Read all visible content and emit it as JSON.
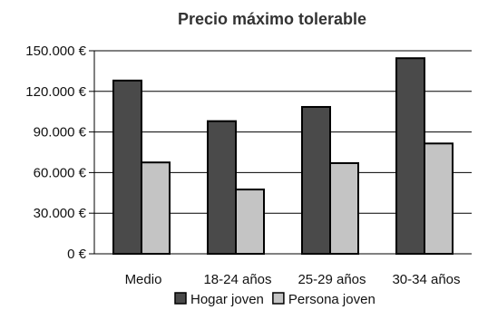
{
  "chart_data": {
    "type": "bar",
    "title": "Precio máximo tolerable",
    "xlabel": "",
    "ylabel": "",
    "categories": [
      "Medio",
      "18-24 años",
      "25-29 años",
      "30-34 años"
    ],
    "series": [
      {
        "name": "Hogar joven",
        "values": [
          128000,
          98000,
          108500,
          144500
        ],
        "color": "#4a4a4a"
      },
      {
        "name": "Persona joven",
        "values": [
          67500,
          47500,
          67000,
          81500
        ],
        "color": "#c4c4c4"
      }
    ],
    "ylim": [
      0,
      150000
    ],
    "yticks": [
      {
        "value": 0,
        "label": "0 €"
      },
      {
        "value": 30000,
        "label": "30.000 €"
      },
      {
        "value": 60000,
        "label": "60.000 €"
      },
      {
        "value": 90000,
        "label": "90.000 €"
      },
      {
        "value": 120000,
        "label": "120.000 €"
      },
      {
        "value": 150000,
        "label": "150.000 €"
      }
    ],
    "grid": true,
    "legend_position": "bottom"
  }
}
